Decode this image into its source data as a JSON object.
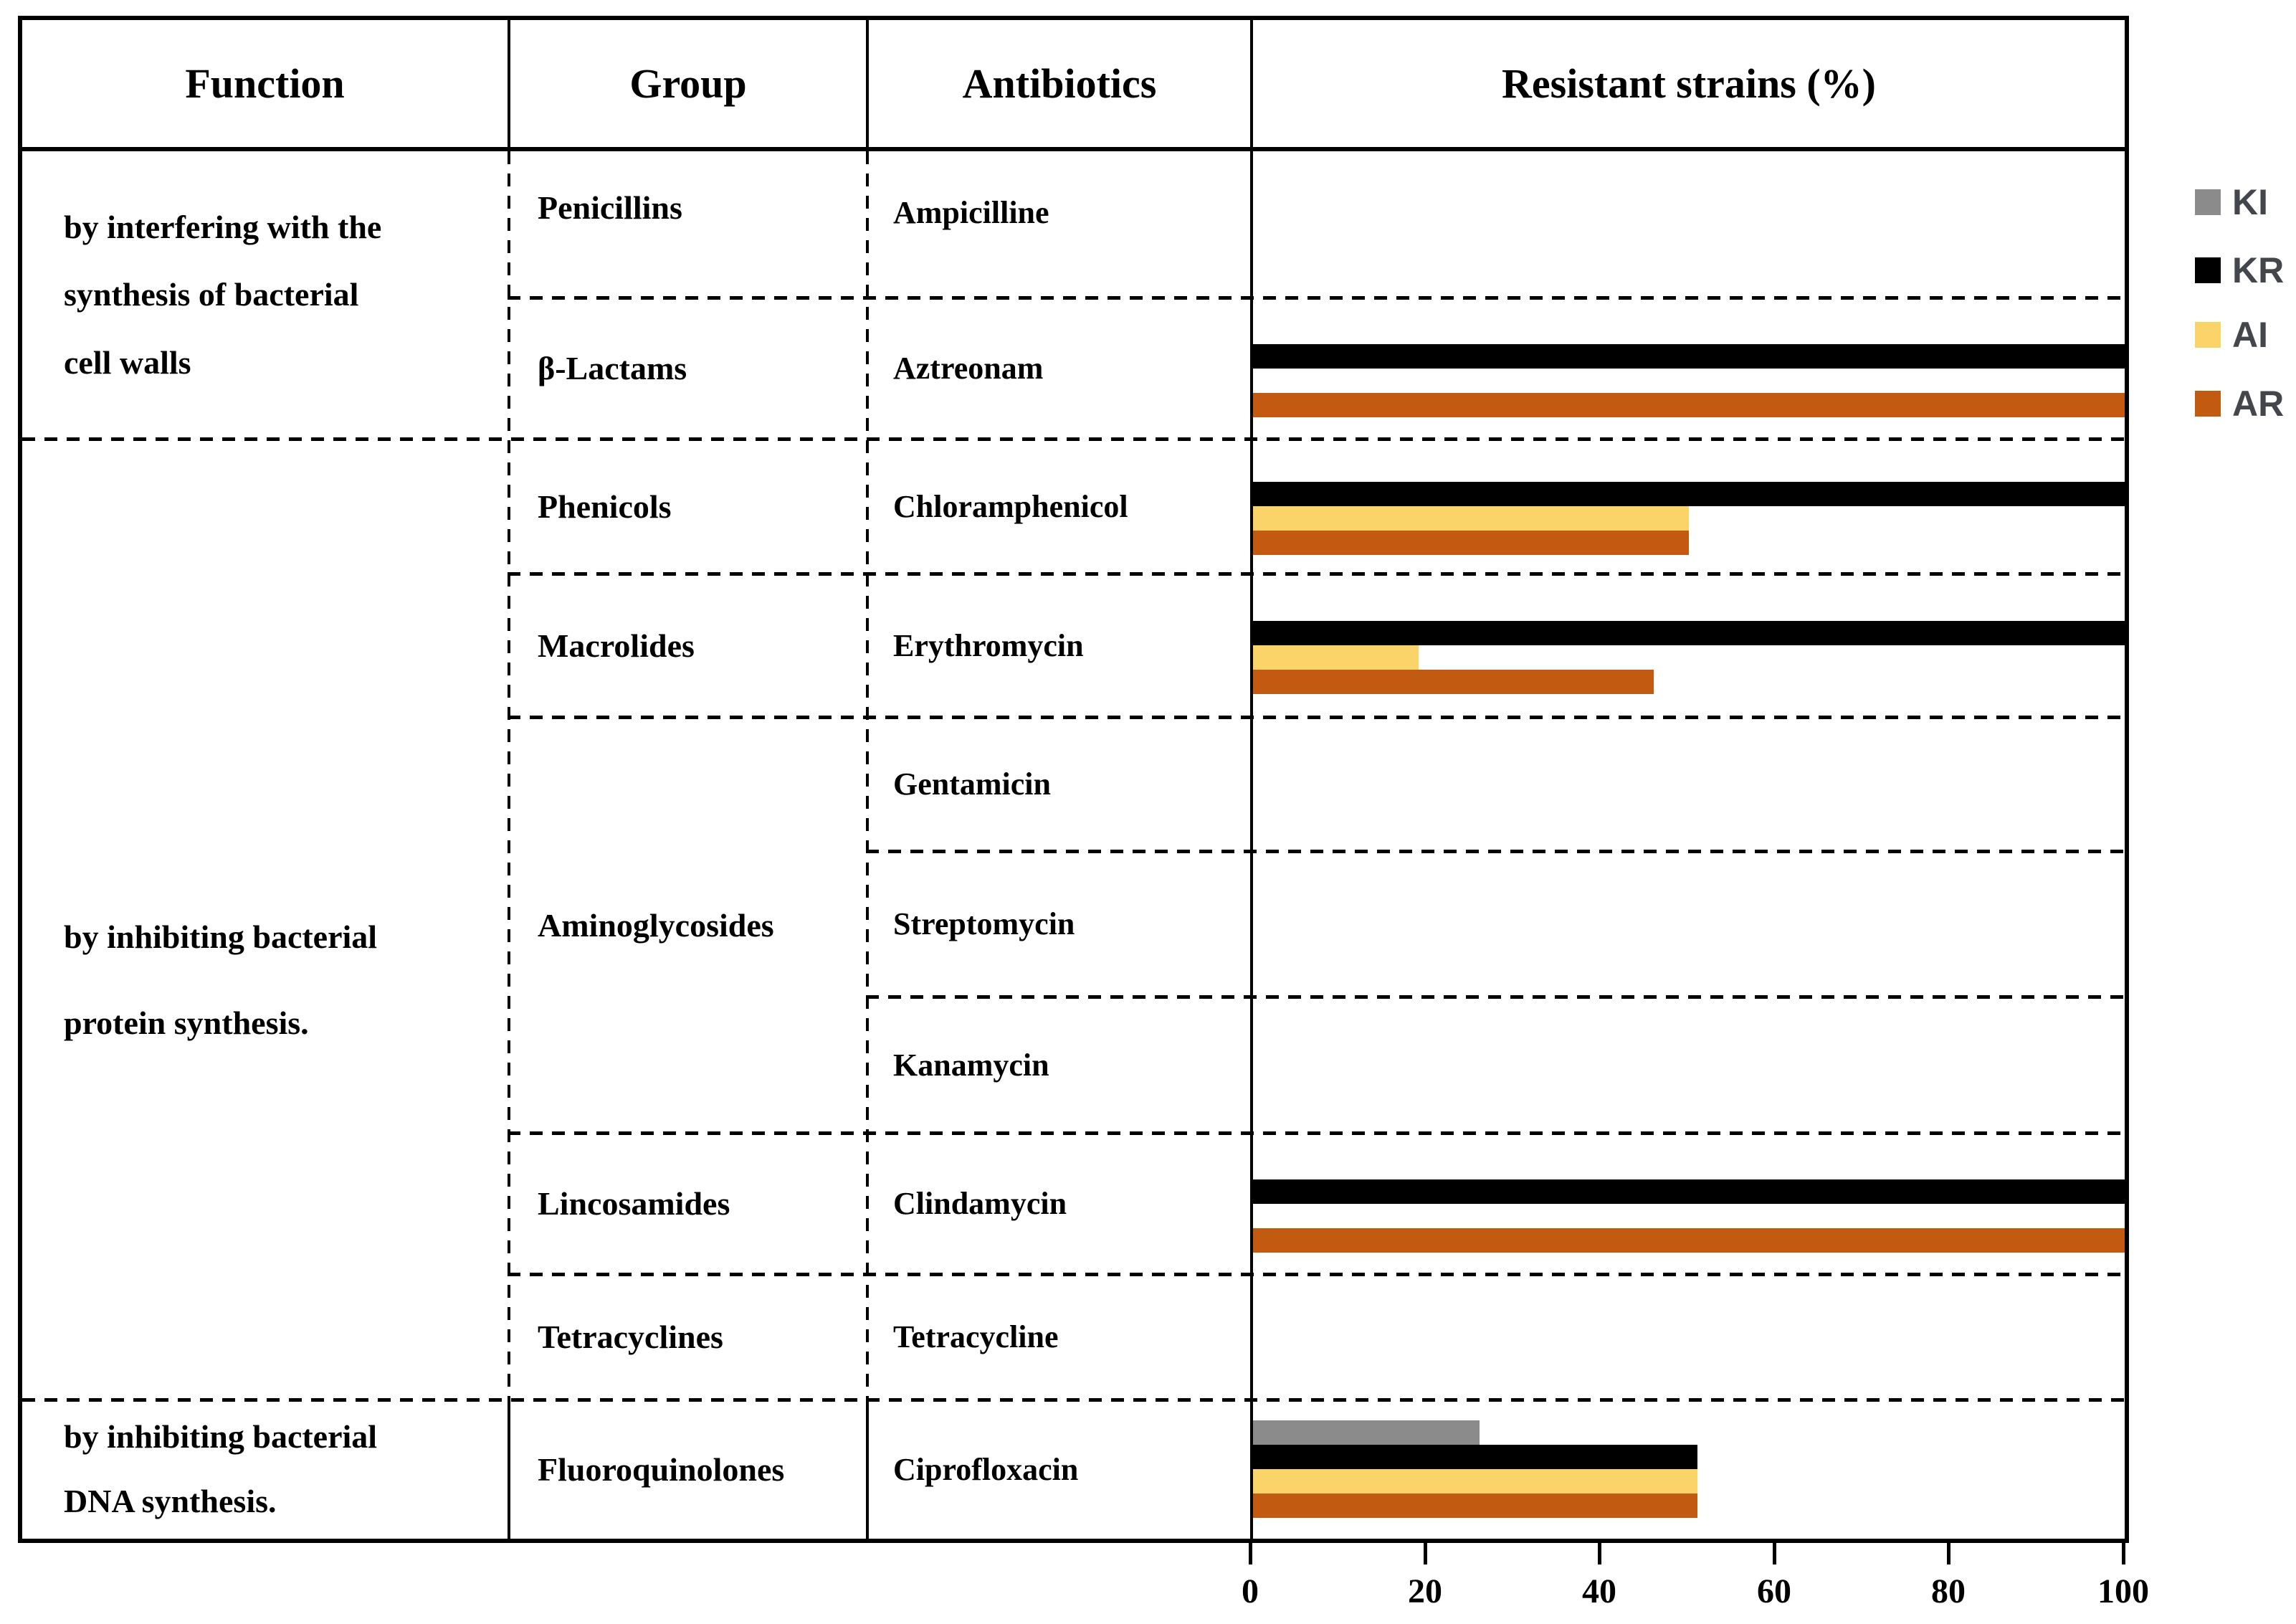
{
  "table": {
    "headers": {
      "function": "Function",
      "group": "Group",
      "antibiotics": "Antibiotics",
      "chart": "Resistant strains (%)"
    },
    "function_cells": [
      "by interfering with the\nsynthesis of bacterial\ncell walls",
      "by inhibiting bacterial\nprotein synthesis.",
      "by inhibiting bacterial\nDNA synthesis."
    ],
    "group_cells": [
      "Penicillins",
      "β-Lactams",
      "Phenicols",
      "Macrolides",
      "Aminoglycosides",
      "Lincosamides",
      "Tetracyclines",
      "Fluoroquinolones"
    ],
    "antibiotic_cells": [
      "Ampicilline",
      "Aztreonam",
      "Chloramphenicol",
      "Erythromycin",
      "Gentamicin",
      "Streptomycin",
      "Kanamycin",
      "Clindamycin",
      "Tetracycline",
      "Ciprofloxacin"
    ]
  },
  "legend": {
    "items": [
      {
        "label": "KI",
        "color": "#8B8B8B"
      },
      {
        "label": "KR",
        "color": "#000000"
      },
      {
        "label": "AI",
        "color": "#FAD369"
      },
      {
        "label": "AR",
        "color": "#C25A12"
      }
    ]
  },
  "chart_data": {
    "type": "bar",
    "orientation": "horizontal",
    "title": "Resistant strains (%)",
    "xlabel": "",
    "ylabel": "",
    "xlim": [
      0,
      100
    ],
    "xticks": [
      0,
      20,
      40,
      60,
      80,
      100
    ],
    "grid": false,
    "legend_position": "outside-right-top",
    "categories": [
      "Ampicilline",
      "Aztreonam",
      "Chloramphenicol",
      "Erythromycin",
      "Gentamicin",
      "Streptomycin",
      "Kanamycin",
      "Clindamycin",
      "Tetracycline",
      "Ciprofloxacin"
    ],
    "series": [
      {
        "name": "KI",
        "color": "#8B8B8B",
        "values": [
          null,
          null,
          null,
          null,
          null,
          null,
          null,
          null,
          null,
          26
        ]
      },
      {
        "name": "KR",
        "color": "#000000",
        "values": [
          null,
          100,
          100,
          100,
          null,
          null,
          null,
          100,
          null,
          51
        ]
      },
      {
        "name": "AI",
        "color": "#FAD369",
        "values": [
          null,
          null,
          50,
          19,
          null,
          null,
          null,
          null,
          null,
          51
        ]
      },
      {
        "name": "AR",
        "color": "#C25A12",
        "values": [
          null,
          100,
          50,
          46,
          null,
          null,
          null,
          100,
          null,
          51
        ]
      }
    ]
  }
}
